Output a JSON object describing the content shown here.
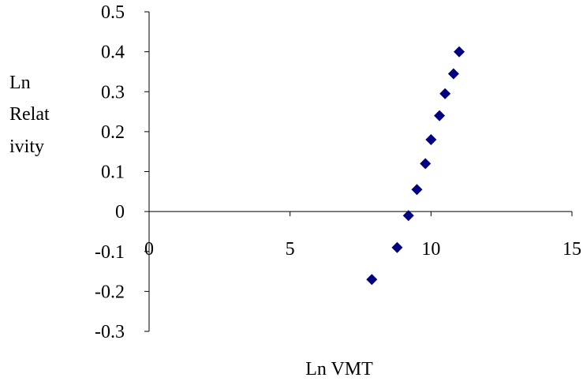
{
  "chart_data": {
    "type": "scatter",
    "title": "",
    "xlabel": "Ln VMT",
    "ylabel_lines": [
      "Ln",
      "Relat",
      "ivity"
    ],
    "xlim": [
      0,
      15
    ],
    "ylim": [
      -0.3,
      0.5
    ],
    "x_ticks": [
      0,
      5,
      10,
      15
    ],
    "y_ticks": [
      0.5,
      0.4,
      0.3,
      0.2,
      0.1,
      0,
      -0.1,
      -0.2,
      -0.3
    ],
    "x_tick_labels": [
      "0",
      "5",
      "10",
      "15"
    ],
    "y_tick_labels": [
      "0.5",
      "0.4",
      "0.3",
      "0.2",
      "0.1",
      "0",
      "-0.1",
      "-0.2",
      "-0.3"
    ],
    "grid": false,
    "legend": "none",
    "marker": "diamond",
    "marker_color": "#000080",
    "points": [
      {
        "x": 7.9,
        "y": -0.17
      },
      {
        "x": 8.8,
        "y": -0.09
      },
      {
        "x": 9.2,
        "y": -0.01
      },
      {
        "x": 9.5,
        "y": 0.055
      },
      {
        "x": 9.8,
        "y": 0.12
      },
      {
        "x": 10.0,
        "y": 0.18
      },
      {
        "x": 10.3,
        "y": 0.24
      },
      {
        "x": 10.5,
        "y": 0.295
      },
      {
        "x": 10.8,
        "y": 0.345
      },
      {
        "x": 11.0,
        "y": 0.4
      }
    ]
  }
}
